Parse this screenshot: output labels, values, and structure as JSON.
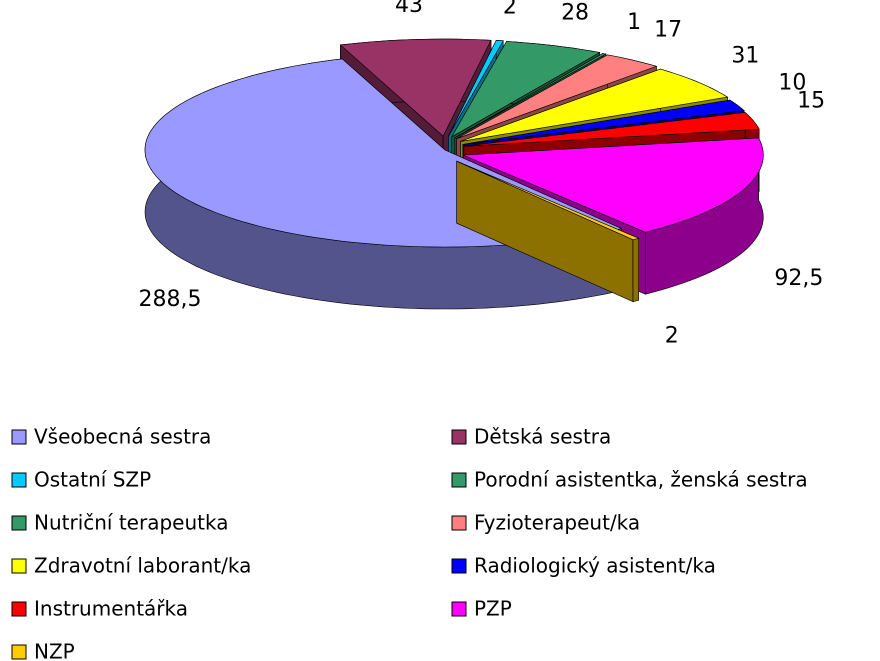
{
  "chart_data": {
    "type": "pie",
    "categories": [
      "Všeobecná sestra",
      "Dětská sestra",
      "Ostatní SZP",
      "Porodní asistentka, ženská sestra",
      "Nutriční terapeutka",
      "Fyzioterapeut/ka",
      "Zdravotní laborant/ka",
      "Radiologický asistent/ka",
      "Instrumentářka",
      "PZP",
      "NZP"
    ],
    "values": [
      288.5,
      43,
      2,
      28,
      1,
      17,
      31,
      10,
      15,
      92.5,
      2
    ],
    "value_labels": [
      "288,5",
      "43",
      "2",
      "28",
      "1",
      "17",
      "31",
      "10",
      "15",
      "92,5",
      "2"
    ],
    "colors": [
      "#9999ff",
      "#993366",
      "#00ccff",
      "#339966",
      "#339966",
      "#ff8080",
      "#ffff00",
      "#0000ff",
      "#ff0000",
      "#ff00ff",
      "#ffcc00"
    ],
    "legend": "bottom"
  }
}
